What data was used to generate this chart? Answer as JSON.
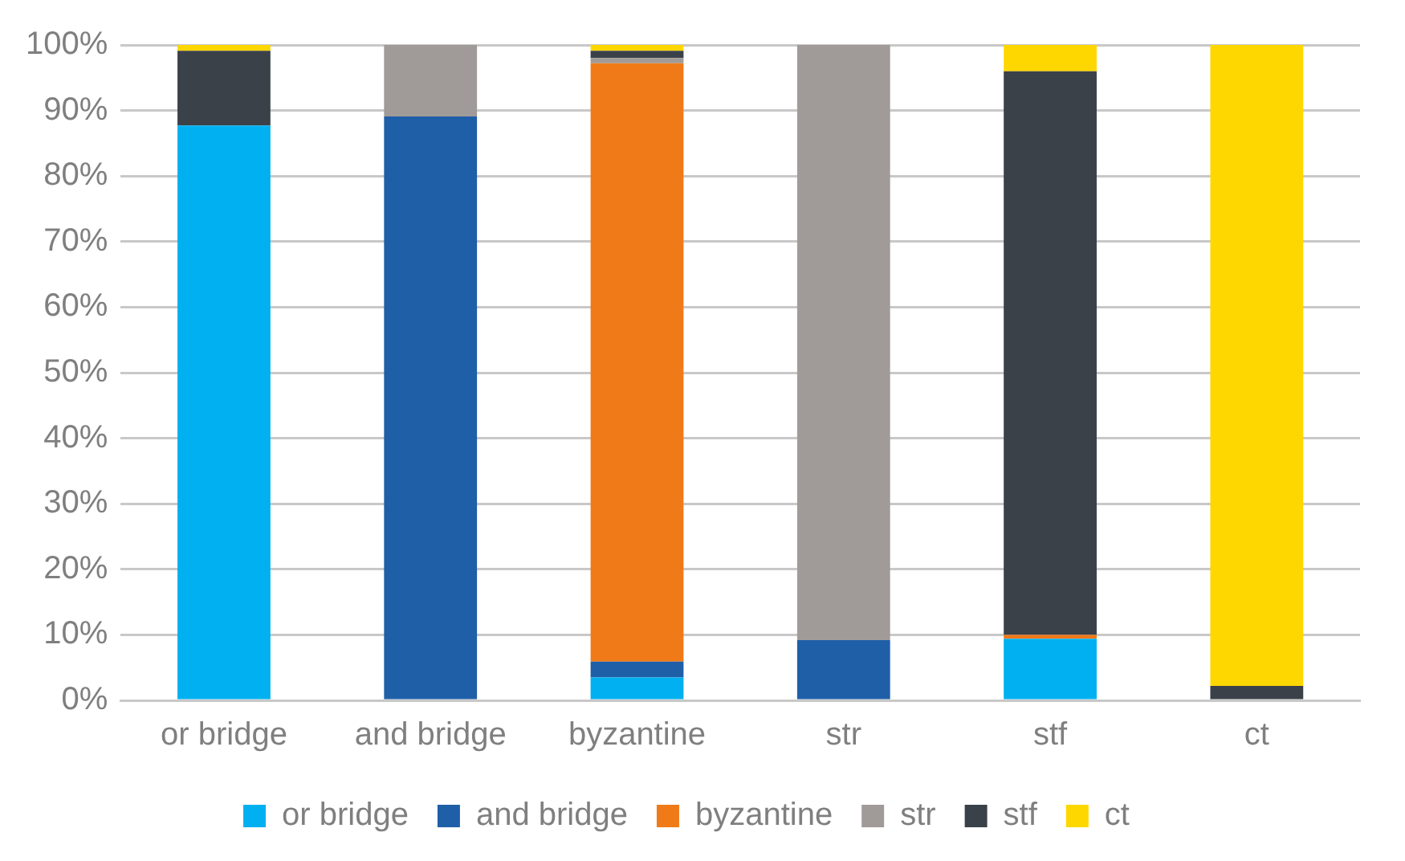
{
  "chart_data": {
    "type": "bar",
    "stacked": true,
    "categories": [
      "or bridge",
      "and bridge",
      "byzantine",
      "str",
      "stf",
      "ct"
    ],
    "series": [
      {
        "name": "or bridge",
        "color": "#00b0f0",
        "values": [
          87.7,
          0,
          3.5,
          0,
          9.4,
          0
        ]
      },
      {
        "name": "and bridge",
        "color": "#1f5fa8",
        "values": [
          0,
          89.1,
          2.4,
          9.2,
          0,
          0
        ]
      },
      {
        "name": "byzantine",
        "color": "#f07a18",
        "values": [
          0,
          0,
          91.3,
          0,
          0.6,
          0
        ]
      },
      {
        "name": "str",
        "color": "#a09b98",
        "values": [
          0,
          10.9,
          0.8,
          90.8,
          0,
          0
        ]
      },
      {
        "name": "stf",
        "color": "#3b4149",
        "values": [
          11.4,
          0,
          1.1,
          0,
          86.0,
          2.2
        ]
      },
      {
        "name": "ct",
        "color": "#ffd700",
        "values": [
          0.9,
          0,
          0.9,
          0,
          4.0,
          97.8
        ]
      }
    ],
    "ylim": [
      0,
      100
    ],
    "yticks": [
      {
        "value": 0,
        "label": "0%"
      },
      {
        "value": 10,
        "label": "10%"
      },
      {
        "value": 20,
        "label": "20%"
      },
      {
        "value": 30,
        "label": "30%"
      },
      {
        "value": 40,
        "label": "40%"
      },
      {
        "value": 50,
        "label": "50%"
      },
      {
        "value": 60,
        "label": "60%"
      },
      {
        "value": 70,
        "label": "70%"
      },
      {
        "value": 80,
        "label": "80%"
      },
      {
        "value": 90,
        "label": "90%"
      },
      {
        "value": 100,
        "label": "100%"
      }
    ],
    "grid": "y",
    "legend": "bottom"
  }
}
